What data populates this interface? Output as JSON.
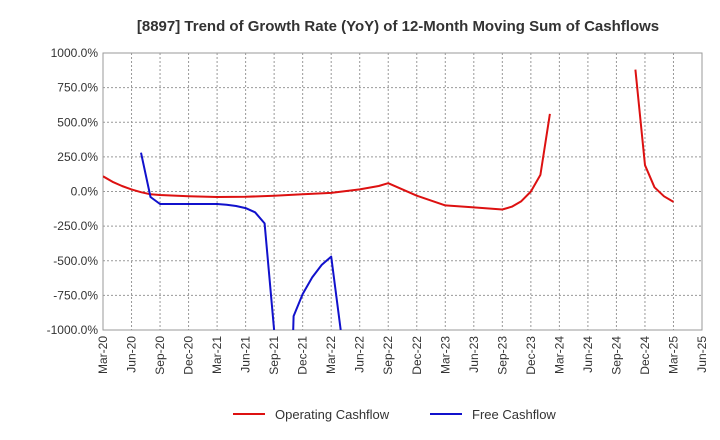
{
  "chart_data": {
    "type": "line",
    "title": "[8897]  Trend of Growth Rate (YoY) of 12-Month Moving Sum of Cashflows",
    "xlabel": "",
    "ylabel": "",
    "ylim": [
      -1000,
      1000
    ],
    "y_ticks": [
      1000,
      750,
      500,
      250,
      0,
      -250,
      -500,
      -750,
      -1000
    ],
    "y_tick_labels": [
      "1000.0%",
      "750.0%",
      "500.0%",
      "250.0%",
      "0.0%",
      "-250.0%",
      "-500.0%",
      "-750.0%",
      "-1000.0%"
    ],
    "x_tick_labels": [
      "Mar-20",
      "Jun-20",
      "Sep-20",
      "Dec-20",
      "Mar-21",
      "Jun-21",
      "Sep-21",
      "Dec-21",
      "Mar-22",
      "Jun-22",
      "Sep-22",
      "Dec-22",
      "Mar-23",
      "Jun-23",
      "Sep-23",
      "Dec-23",
      "Mar-24",
      "Jun-24",
      "Sep-24",
      "Dec-24",
      "Mar-25",
      "Jun-25"
    ],
    "grid": true,
    "legend_position": "bottom",
    "series": [
      {
        "name": "Operating Cashflow",
        "color": "#dd1111",
        "points": [
          {
            "x": "Mar-20",
            "y": 110
          },
          {
            "x": "Apr-20",
            "y": 70
          },
          {
            "x": "May-20",
            "y": 40
          },
          {
            "x": "Jun-20",
            "y": 15
          },
          {
            "x": "Jul-20",
            "y": -5
          },
          {
            "x": "Aug-20",
            "y": -20
          },
          {
            "x": "Sep-20",
            "y": -25
          },
          {
            "x": "Dec-20",
            "y": -35
          },
          {
            "x": "Mar-21",
            "y": -40
          },
          {
            "x": "Jun-21",
            "y": -38
          },
          {
            "x": "Sep-21",
            "y": -30
          },
          {
            "x": "Dec-21",
            "y": -20
          },
          {
            "x": "Mar-22",
            "y": -10
          },
          {
            "x": "Jun-22",
            "y": 15
          },
          {
            "x": "Aug-22",
            "y": 40
          },
          {
            "x": "Sep-22",
            "y": 60
          },
          {
            "x": "Dec-22",
            "y": -30
          },
          {
            "x": "Mar-23",
            "y": -100
          },
          {
            "x": "Jun-23",
            "y": -115
          },
          {
            "x": "Sep-23",
            "y": -130
          },
          {
            "x": "Oct-23",
            "y": -110
          },
          {
            "x": "Nov-23",
            "y": -70
          },
          {
            "x": "Dec-23",
            "y": 0
          },
          {
            "x": "Jan-24",
            "y": 120
          },
          {
            "x": "Feb-24",
            "y": 560
          }
        ],
        "segments_after_gap": [
          {
            "x": "Nov-24",
            "y": 880
          },
          {
            "x": "Dec-24",
            "y": 190
          },
          {
            "x": "Jan-25",
            "y": 30
          },
          {
            "x": "Feb-25",
            "y": -35
          },
          {
            "x": "Mar-25",
            "y": -75
          }
        ]
      },
      {
        "name": "Free Cashflow",
        "color": "#1111cc",
        "points": [
          {
            "x": "Jul-20",
            "y": 280
          },
          {
            "x": "Aug-20",
            "y": -40
          },
          {
            "x": "Sep-20",
            "y": -90
          },
          {
            "x": "Dec-20",
            "y": -90
          },
          {
            "x": "Mar-21",
            "y": -90
          },
          {
            "x": "Apr-21",
            "y": -95
          },
          {
            "x": "May-21",
            "y": -105
          },
          {
            "x": "Jun-21",
            "y": -120
          },
          {
            "x": "Jul-21",
            "y": -150
          },
          {
            "x": "Aug-21",
            "y": -230
          },
          {
            "x": "Sep-21",
            "y": -1000
          }
        ],
        "segments_after_gap": [
          {
            "x": "Nov-21",
            "y": -1000
          },
          {
            "x": "Nov-21b",
            "y": -900
          },
          {
            "x": "Dec-21",
            "y": -740
          },
          {
            "x": "Jan-22",
            "y": -620
          },
          {
            "x": "Feb-22",
            "y": -530
          },
          {
            "x": "Mar-22",
            "y": -470
          },
          {
            "x": "Apr-22",
            "y": -1000
          }
        ]
      }
    ]
  }
}
